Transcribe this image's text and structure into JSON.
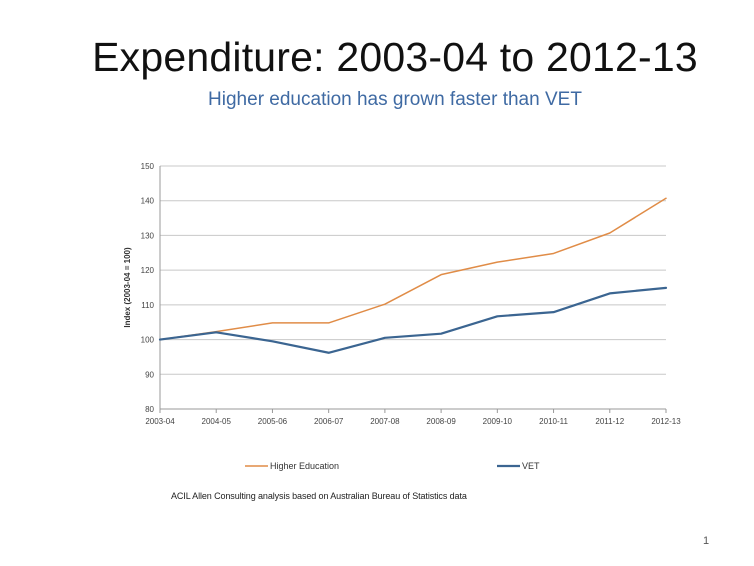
{
  "slide": {
    "title": "Expenditure: 2003-04 to 2012-13",
    "subtitle": "Higher education has grown faster than VET",
    "source": "ACIL Allen Consulting analysis based on Australian Bureau of Statistics data",
    "page_number": "1"
  },
  "colors": {
    "higher_education": "#e08c47",
    "vet": "#3b6591",
    "grid": "#c8c8c8",
    "axis": "#999999"
  },
  "chart_data": {
    "type": "line",
    "categories": [
      "2003-04",
      "2004-05",
      "2005-06",
      "2006-07",
      "2007-08",
      "2008-09",
      "2009-10",
      "2010-11",
      "2011-12",
      "2012-13"
    ],
    "series": [
      {
        "name": "Higher Education",
        "values": [
          100,
          102.3,
          104.8,
          104.8,
          110.2,
          118.7,
          122.3,
          124.8,
          130.7,
          140.7
        ]
      },
      {
        "name": "VET",
        "values": [
          100,
          102.1,
          99.5,
          96.2,
          100.5,
          101.7,
          106.7,
          107.9,
          113.3,
          114.9
        ]
      }
    ],
    "title": "",
    "xlabel": "",
    "ylabel": "Index (2003-04 = 100)",
    "ylim": [
      80,
      150
    ],
    "yticks": [
      80,
      90,
      100,
      110,
      120,
      130,
      140,
      150
    ],
    "grid": true,
    "legend": "bottom"
  }
}
